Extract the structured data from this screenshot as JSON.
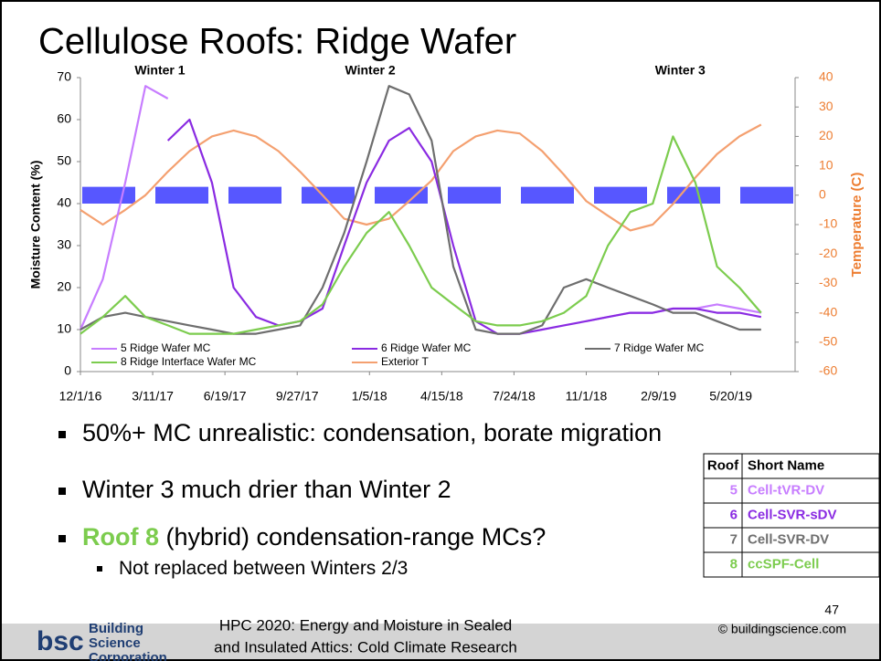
{
  "title": "Cellulose Roofs: Ridge Wafer",
  "chart_data": {
    "type": "line",
    "ylabel": "Moisture Content (%)",
    "y2label": "Temperature (C)",
    "x": [
      "2016-12-01",
      "2017-01-01",
      "2017-02-01",
      "2017-03-01",
      "2017-04-01",
      "2017-05-01",
      "2017-06-01",
      "2017-07-01",
      "2017-08-01",
      "2017-09-01",
      "2017-10-01",
      "2017-11-01",
      "2017-12-01",
      "2018-01-01",
      "2018-02-01",
      "2018-03-01",
      "2018-04-01",
      "2018-05-01",
      "2018-06-01",
      "2018-07-01",
      "2018-08-01",
      "2018-09-01",
      "2018-10-01",
      "2018-11-01",
      "2018-12-01",
      "2019-01-01",
      "2019-02-01",
      "2019-03-01",
      "2019-04-01",
      "2019-05-01",
      "2019-06-01",
      "2019-07-01"
    ],
    "series": [
      {
        "name": "5 Ridge Wafer MC",
        "color": "#c77dff",
        "values": [
          10,
          22,
          45,
          68,
          65,
          null,
          null,
          null,
          null,
          null,
          null,
          null,
          null,
          null,
          null,
          null,
          null,
          null,
          null,
          null,
          null,
          null,
          null,
          12,
          13,
          14,
          14,
          15,
          15,
          16,
          15,
          14
        ]
      },
      {
        "name": "6 Ridge Wafer MC",
        "color": "#8a2be2",
        "values": [
          null,
          null,
          null,
          null,
          55,
          60,
          45,
          20,
          13,
          11,
          12,
          15,
          30,
          45,
          55,
          58,
          50,
          30,
          12,
          9,
          9,
          10,
          11,
          12,
          13,
          14,
          14,
          15,
          15,
          14,
          14,
          13
        ]
      },
      {
        "name": "7 Ridge Wafer MC",
        "color": "#6e6e6e",
        "values": [
          10,
          13,
          14,
          13,
          12,
          11,
          10,
          9,
          9,
          10,
          11,
          20,
          33,
          50,
          68,
          66,
          55,
          25,
          10,
          9,
          9,
          11,
          20,
          22,
          20,
          18,
          16,
          14,
          14,
          12,
          10,
          10
        ]
      },
      {
        "name": "8 Ridge Interface Wafer MC",
        "color": "#7ccc4e",
        "values": [
          9,
          13,
          18,
          13,
          11,
          9,
          9,
          9,
          10,
          11,
          12,
          16,
          25,
          33,
          38,
          30,
          20,
          16,
          12,
          11,
          11,
          12,
          14,
          18,
          30,
          38,
          40,
          56,
          45,
          25,
          20,
          14
        ]
      },
      {
        "name": "Exterior T",
        "color": "#f4a070",
        "axis": "y2",
        "values": [
          -5,
          -10,
          -5,
          0,
          8,
          15,
          20,
          22,
          20,
          15,
          8,
          0,
          -8,
          -10,
          -8,
          -2,
          5,
          15,
          20,
          22,
          21,
          15,
          7,
          -2,
          -7,
          -12,
          -10,
          -3,
          6,
          14,
          20,
          24
        ]
      }
    ],
    "xlim": [
      "2016-12-01",
      "2019-08-17"
    ],
    "xticks": [
      {
        "value": "2016-12-01",
        "label": "12/1/16"
      },
      {
        "value": "2017-03-11",
        "label": "3/11/17"
      },
      {
        "value": "2017-06-19",
        "label": "6/19/17"
      },
      {
        "value": "2017-09-27",
        "label": "9/27/17"
      },
      {
        "value": "2018-01-05",
        "label": "1/5/18"
      },
      {
        "value": "2018-04-15",
        "label": "4/15/18"
      },
      {
        "value": "2018-07-24",
        "label": "7/24/18"
      },
      {
        "value": "2018-11-01",
        "label": "11/1/18"
      },
      {
        "value": "2019-02-09",
        "label": "2/9/19"
      },
      {
        "value": "2019-05-20",
        "label": "5/20/19"
      }
    ],
    "ylim": [
      0,
      70
    ],
    "yticks": [
      0,
      10,
      20,
      30,
      40,
      50,
      60,
      70
    ],
    "y2lim": [
      -60,
      40
    ],
    "y2ticks": [
      -60,
      -50,
      -40,
      -30,
      -20,
      -10,
      0,
      10,
      20,
      30,
      40
    ],
    "y2color": "#ed7d31",
    "reference_band": {
      "values": [
        40,
        44
      ],
      "color": "#3a3aff"
    },
    "annotations": [
      {
        "text": "Winter 1",
        "x": "2017-03-21"
      },
      {
        "text": "Winter 2",
        "x": "2018-01-06"
      },
      {
        "text": "Winter 3",
        "x": "2019-03-11"
      }
    ]
  },
  "bullets": [
    {
      "segments": [
        {
          "text": "50%+ MC unrealistic: condensation, borate migration"
        }
      ]
    },
    {
      "segments": [
        {
          "text": "Winter 3 much drier than Winter 2"
        }
      ]
    },
    {
      "segments": [
        {
          "text": "Roof 8",
          "color": "#7ccc4e",
          "bold": true
        },
        {
          "text": " (hybrid) condensation-range MCs?"
        }
      ]
    },
    {
      "segments": [
        {
          "text": "Not replaced between Winters 2/3"
        }
      ],
      "level": 2
    }
  ],
  "table": {
    "header": [
      "Roof",
      "Short Name"
    ],
    "rows": [
      {
        "cells": [
          5,
          "Cell-tVR-DV"
        ],
        "color": "#c77dff"
      },
      {
        "cells": [
          6,
          "Cell-SVR-sDV"
        ],
        "color": "#8a2be2"
      },
      {
        "cells": [
          7,
          "Cell-SVR-DV"
        ],
        "color": "#6e6e6e"
      },
      {
        "cells": [
          8,
          "ccSPF-Cell"
        ],
        "color": "#7ccc4e"
      }
    ]
  },
  "footer": {
    "logo": "bsc",
    "company": [
      "Building",
      "Science",
      "Corporation"
    ],
    "center": [
      "HPC 2020: Energy and Moisture in Sealed",
      "and Insulated Attics: Cold Climate Research"
    ],
    "page": 47,
    "copyright": "© buildingscience.com"
  }
}
